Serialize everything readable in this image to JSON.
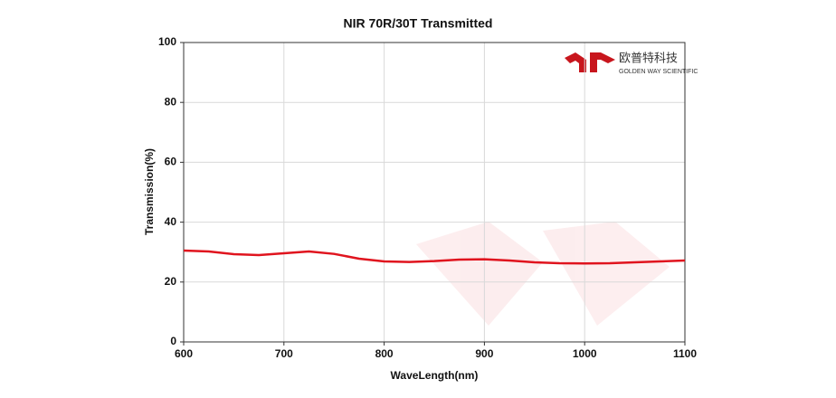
{
  "chart_data": {
    "type": "line",
    "title": "NIR 70R/30T Transmitted",
    "x_label": "WaveLength(nm)",
    "y_label": "Transmission(%)",
    "x": [
      600,
      625,
      650,
      675,
      700,
      725,
      750,
      775,
      800,
      825,
      850,
      875,
      900,
      925,
      950,
      975,
      1000,
      1025,
      1050,
      1075,
      1100
    ],
    "series": [
      {
        "name": "Transmitted",
        "color": "#e0141e",
        "values": [
          30.5,
          30.2,
          29.3,
          29.0,
          29.6,
          30.2,
          29.4,
          27.8,
          26.9,
          26.7,
          27.0,
          27.5,
          27.6,
          27.2,
          26.6,
          26.3,
          26.2,
          26.3,
          26.6,
          26.9,
          27.2
        ]
      }
    ],
    "xlim": [
      600,
      1100
    ],
    "xticks": [
      600,
      700,
      800,
      900,
      1000,
      1100
    ],
    "ylim": [
      0,
      100
    ],
    "yticks": [
      0,
      20,
      40,
      60,
      80,
      100
    ],
    "grid": true,
    "logo": {
      "name": "欧普特科技",
      "tagline": "GOLDEN WAY SCIENTIFIC"
    }
  }
}
